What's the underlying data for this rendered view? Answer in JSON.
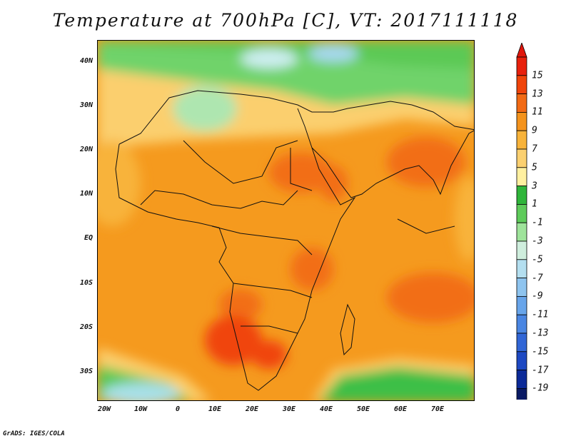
{
  "title": "Temperature at 700hPa [C], VT: 2017111118",
  "credit": "GrADS: IGES/COLA",
  "map": {
    "y_ticks": [
      "40N",
      "30N",
      "20N",
      "10N",
      "EQ",
      "10S",
      "20S",
      "30S"
    ],
    "x_ticks": [
      "20W",
      "10W",
      "0",
      "10E",
      "20E",
      "30E",
      "40E",
      "50E",
      "60E",
      "70E"
    ],
    "lon_range": [
      -22,
      80
    ],
    "lat_range": [
      -37,
      45
    ]
  },
  "colorbar": {
    "labels": [
      "15",
      "13",
      "11",
      "9",
      "7",
      "5",
      "3",
      "1",
      "-1",
      "-3",
      "-5",
      "-7",
      "-9",
      "-11",
      "-13",
      "-15",
      "-17",
      "-19"
    ],
    "colors": [
      "#e8200c",
      "#f0440a",
      "#f26a14",
      "#f4931c",
      "#f8b33a",
      "#fbd070",
      "#fff0a0",
      "#2fb53a",
      "#5ecb5a",
      "#9ee39a",
      "#cfeedd",
      "#b4dff0",
      "#8ec4ef",
      "#68a5ea",
      "#4a86e2",
      "#3166d6",
      "#1d48c2",
      "#0c2a98",
      "#0a1a64"
    ],
    "over_color": "#e0160c",
    "under_color": "#e8e4f8"
  }
}
